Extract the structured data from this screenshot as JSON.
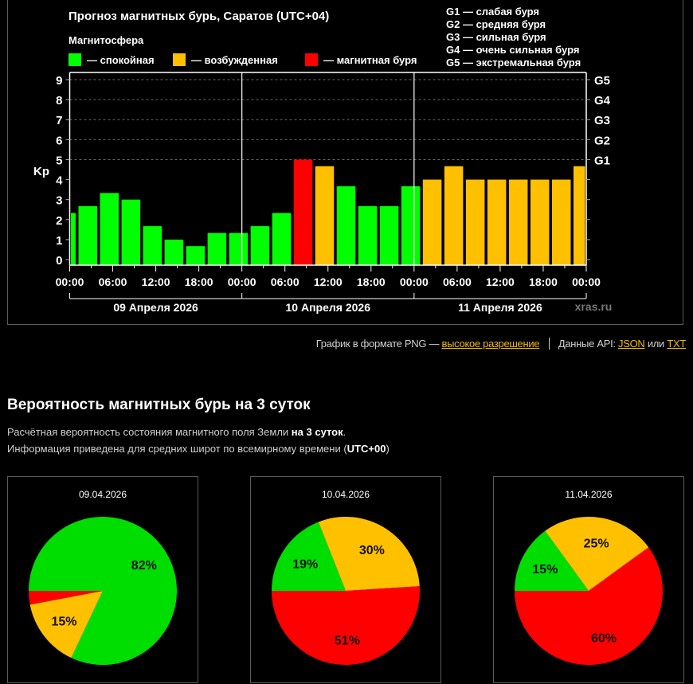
{
  "chart_data": [
    {
      "type": "bar",
      "title": "Прогноз магнитных бурь, Саратов (UTC+04)",
      "legend_title": "Магнитосфера",
      "legend": [
        {
          "label": "— спокойная",
          "color": "#00ff00"
        },
        {
          "label": "— возбужденная",
          "color": "#ffc000"
        },
        {
          "label": "— магнитная буря",
          "color": "#ff0000"
        }
      ],
      "g_scale_legend": [
        "G1 — слабая буря",
        "G2 — средняя буря",
        "G3 — сильная буря",
        "G4 — очень сильная буря",
        "G5 — экстремальная буря"
      ],
      "ylabel": "Kp",
      "ylim": [
        0,
        9
      ],
      "yticks": [
        "0",
        "1",
        "2",
        "3",
        "4",
        "5",
        "6",
        "7",
        "8",
        "9"
      ],
      "g_ticks": [
        {
          "kp": 5,
          "label": "G1"
        },
        {
          "kp": 6,
          "label": "G2"
        },
        {
          "kp": 7,
          "label": "G3"
        },
        {
          "kp": 8,
          "label": "G4"
        },
        {
          "kp": 9,
          "label": "G5"
        }
      ],
      "xlim_hours": [
        0,
        72
      ],
      "xtick_labels": [
        "00:00",
        "06:00",
        "12:00",
        "18:00",
        "00:00",
        "06:00",
        "12:00",
        "18:00",
        "00:00",
        "06:00",
        "12:00",
        "18:00",
        "00:00"
      ],
      "days": [
        "09 Апреля 2026",
        "10 Апреля 2026",
        "11 Апреля 2026"
      ],
      "watermark": "xras.ru",
      "bars": [
        {
          "start": 0,
          "end": 1,
          "kp": 2.33,
          "level": "quiet"
        },
        {
          "start": 1,
          "end": 4,
          "kp": 2.67,
          "level": "quiet"
        },
        {
          "start": 4,
          "end": 7,
          "kp": 3.33,
          "level": "quiet"
        },
        {
          "start": 7,
          "end": 10,
          "kp": 3.0,
          "level": "quiet"
        },
        {
          "start": 10,
          "end": 13,
          "kp": 1.67,
          "level": "quiet"
        },
        {
          "start": 13,
          "end": 16,
          "kp": 1.0,
          "level": "quiet"
        },
        {
          "start": 16,
          "end": 19,
          "kp": 0.67,
          "level": "quiet"
        },
        {
          "start": 19,
          "end": 22,
          "kp": 1.33,
          "level": "quiet"
        },
        {
          "start": 22,
          "end": 25,
          "kp": 1.33,
          "level": "quiet"
        },
        {
          "start": 25,
          "end": 28,
          "kp": 1.67,
          "level": "quiet"
        },
        {
          "start": 28,
          "end": 31,
          "kp": 2.33,
          "level": "quiet"
        },
        {
          "start": 31,
          "end": 34,
          "kp": 5.0,
          "level": "storm"
        },
        {
          "start": 34,
          "end": 37,
          "kp": 4.67,
          "level": "active"
        },
        {
          "start": 37,
          "end": 40,
          "kp": 3.67,
          "level": "quiet"
        },
        {
          "start": 40,
          "end": 43,
          "kp": 2.67,
          "level": "quiet"
        },
        {
          "start": 43,
          "end": 46,
          "kp": 2.67,
          "level": "quiet"
        },
        {
          "start": 46,
          "end": 49,
          "kp": 3.67,
          "level": "quiet"
        },
        {
          "start": 49,
          "end": 52,
          "kp": 4.0,
          "level": "active"
        },
        {
          "start": 52,
          "end": 55,
          "kp": 4.67,
          "level": "active"
        },
        {
          "start": 55,
          "end": 58,
          "kp": 4.0,
          "level": "active"
        },
        {
          "start": 58,
          "end": 61,
          "kp": 4.0,
          "level": "active"
        },
        {
          "start": 61,
          "end": 64,
          "kp": 4.0,
          "level": "active"
        },
        {
          "start": 64,
          "end": 67,
          "kp": 4.0,
          "level": "active"
        },
        {
          "start": 67,
          "end": 70,
          "kp": 4.0,
          "level": "active"
        },
        {
          "start": 70,
          "end": 72,
          "kp": 4.67,
          "level": "active"
        }
      ],
      "grid": true
    },
    {
      "type": "pie",
      "title": "09.04.2026",
      "slices": [
        {
          "name": "quiet",
          "value": 82,
          "label": "82%",
          "color": "#00dd00"
        },
        {
          "name": "active",
          "value": 15,
          "label": "15%",
          "color": "#ffc000"
        },
        {
          "name": "storm",
          "value": 3,
          "label": "",
          "color": "#ff0000"
        }
      ]
    },
    {
      "type": "pie",
      "title": "10.04.2026",
      "slices": [
        {
          "name": "quiet",
          "value": 19,
          "label": "19%",
          "color": "#00dd00"
        },
        {
          "name": "active",
          "value": 30,
          "label": "30%",
          "color": "#ffc000"
        },
        {
          "name": "storm",
          "value": 51,
          "label": "51%",
          "color": "#ff0000"
        }
      ]
    },
    {
      "type": "pie",
      "title": "11.04.2026",
      "slices": [
        {
          "name": "quiet",
          "value": 15,
          "label": "15%",
          "color": "#00dd00"
        },
        {
          "name": "active",
          "value": 25,
          "label": "25%",
          "color": "#ffc000"
        },
        {
          "name": "storm",
          "value": 60,
          "label": "60%",
          "color": "#ff0000"
        }
      ]
    }
  ],
  "colors": {
    "quiet": "#00ff00",
    "active": "#ffc000",
    "storm": "#ff0000",
    "link": "#f3b900"
  },
  "footer": {
    "png_text": "График в формате PNG —",
    "hires_link": "высокое разрешение",
    "api_text": "Данные API:",
    "json_link": "JSON",
    "or_text": "или",
    "txt_link": "TXT"
  },
  "section": {
    "title": "Вероятность магнитных бурь на 3 суток",
    "desc1_pre": "Расчётная вероятность состояния магнитного поля Земли ",
    "desc1_bold": "на 3 суток",
    "desc1_post": ".",
    "desc2_pre": "Информация приведена для средних широт по всемирному времени (",
    "desc2_bold": "UTC+00",
    "desc2_post": ")"
  }
}
